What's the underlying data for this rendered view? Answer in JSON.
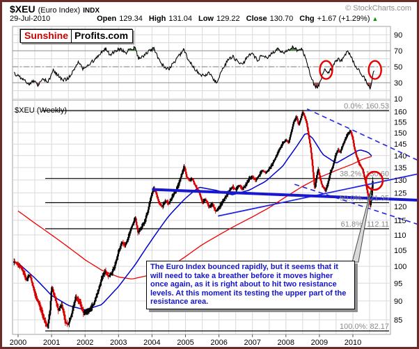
{
  "header": {
    "ticker": "$XEU",
    "name": "(Euro Index)",
    "exchange": "INDX",
    "date": "29-Jul-2010",
    "open_label": "Open",
    "open_value": "129.34",
    "high_label": "High",
    "high_value": "131.04",
    "low_label": "Low",
    "low_value": "129.22",
    "close_label": "Close",
    "close_value": "130.70",
    "chg_label": "Chg",
    "chg_value": "+1.67 (+1.29%)",
    "chg_arrow": "▲",
    "copyright": "© StockCharts.com"
  },
  "logo": {
    "part1": "Sunshine",
    "part2": "Profits.com"
  },
  "annotation": {
    "text": "The Euro Index bounced rapidly, but it seems that it will need  to take a breather before it moves higher once again, as it is right about to hit two resistance levels. At this moment its testing the upper part of the resistance area."
  },
  "colors": {
    "candle_up": "#000000",
    "candle_down": "#d40000",
    "ma50": "#0000cc",
    "ma200": "#ee0000",
    "trendline_blue": "#2323e6",
    "thick_blue": "#1818cf",
    "grid": "#d9d9d9",
    "panel_border": "#a0a0a0",
    "fib_line": "#000000",
    "fib_label": "#8a8a8a",
    "rsi_line": "#000000",
    "rsi_band": "#8f8f8f",
    "overbought_fill": "#54804f",
    "oversold_fill": "#a05555",
    "ellipse_red": "#e60000",
    "arrow_fill": "#d9d9d9",
    "arrow_stroke": "#4a4a4a"
  },
  "chart_data": [
    {
      "type": "line",
      "name": "momentum-oscillator-panel",
      "y_ticks": [
        90,
        70,
        50,
        30,
        10
      ],
      "ylim": [
        5,
        97
      ],
      "overbought_level": 70,
      "oversold_level": 30,
      "midline": 50,
      "grid": true,
      "keypoints": [
        [
          1999.88,
          42
        ],
        [
          2000.1,
          36
        ],
        [
          2000.3,
          28
        ],
        [
          2000.45,
          33
        ],
        [
          2000.6,
          27
        ],
        [
          2000.75,
          34
        ],
        [
          2000.9,
          31
        ],
        [
          2001.05,
          46
        ],
        [
          2001.2,
          39
        ],
        [
          2001.35,
          33
        ],
        [
          2001.5,
          36
        ],
        [
          2001.65,
          45
        ],
        [
          2001.8,
          55
        ],
        [
          2001.95,
          47
        ],
        [
          2002.1,
          51
        ],
        [
          2002.3,
          60
        ],
        [
          2002.5,
          68
        ],
        [
          2002.62,
          72
        ],
        [
          2002.75,
          65
        ],
        [
          2002.9,
          69
        ],
        [
          2003.05,
          73
        ],
        [
          2003.2,
          67
        ],
        [
          2003.35,
          72
        ],
        [
          2003.5,
          74
        ],
        [
          2003.6,
          60
        ],
        [
          2003.75,
          63
        ],
        [
          2003.9,
          69
        ],
        [
          2004.05,
          73
        ],
        [
          2004.2,
          60
        ],
        [
          2004.35,
          50
        ],
        [
          2004.5,
          47
        ],
        [
          2004.65,
          55
        ],
        [
          2004.8,
          63
        ],
        [
          2004.95,
          71
        ],
        [
          2005.1,
          58
        ],
        [
          2005.25,
          49
        ],
        [
          2005.4,
          42
        ],
        [
          2005.55,
          38
        ],
        [
          2005.7,
          43
        ],
        [
          2005.85,
          33
        ],
        [
          2005.95,
          31
        ],
        [
          2006.1,
          46
        ],
        [
          2006.25,
          57
        ],
        [
          2006.4,
          63
        ],
        [
          2006.55,
          57
        ],
        [
          2006.7,
          53
        ],
        [
          2006.85,
          62
        ],
        [
          2007.0,
          67
        ],
        [
          2007.15,
          58
        ],
        [
          2007.3,
          65
        ],
        [
          2007.45,
          62
        ],
        [
          2007.6,
          67
        ],
        [
          2007.75,
          73
        ],
        [
          2007.9,
          67
        ],
        [
          2008.05,
          71
        ],
        [
          2008.2,
          75
        ],
        [
          2008.35,
          70
        ],
        [
          2008.45,
          74
        ],
        [
          2008.55,
          65
        ],
        [
          2008.65,
          52
        ],
        [
          2008.75,
          38
        ],
        [
          2008.85,
          26
        ],
        [
          2008.95,
          24
        ],
        [
          2009.05,
          35
        ],
        [
          2009.15,
          48
        ],
        [
          2009.25,
          41
        ],
        [
          2009.35,
          47
        ],
        [
          2009.45,
          54
        ],
        [
          2009.55,
          60
        ],
        [
          2009.65,
          57
        ],
        [
          2009.75,
          64
        ],
        [
          2009.85,
          69
        ],
        [
          2009.95,
          62
        ],
        [
          2010.05,
          53
        ],
        [
          2010.15,
          47
        ],
        [
          2010.25,
          41
        ],
        [
          2010.35,
          36
        ],
        [
          2010.45,
          27
        ],
        [
          2010.52,
          22
        ],
        [
          2010.58,
          35
        ],
        [
          2010.64,
          47
        ]
      ],
      "highlight_ellipses": [
        {
          "x": 2009.2,
          "value": 46
        },
        {
          "x": 2010.66,
          "value": 46
        }
      ]
    },
    {
      "type": "candlestick",
      "name": "price-panel",
      "title": "$XEU (Weekly)",
      "scale": "log",
      "x_ticks": [
        2000,
        2001,
        2002,
        2003,
        2004,
        2005,
        2006,
        2007,
        2008,
        2009,
        2010
      ],
      "y_ticks": [
        160,
        155,
        150,
        145,
        140,
        135,
        130,
        125,
        120,
        115,
        110,
        105,
        100,
        95,
        90,
        85
      ],
      "ylim": [
        81.5,
        163
      ],
      "last_bar": {
        "date": "29-Jul-2010",
        "open": 129.34,
        "high": 131.04,
        "low": 129.22,
        "close": 130.7,
        "change": "+1.67",
        "change_pct": "+1.29%"
      },
      "fibonacci": [
        {
          "label": "0.0%",
          "value": 160.53
        },
        {
          "label": "38.2%",
          "value": 130.6
        },
        {
          "label": "50.0%",
          "value": 121.35
        },
        {
          "label": "61.8%",
          "value": 112.11
        },
        {
          "label": "100.0%",
          "value": 82.17
        }
      ],
      "close_keypoints": [
        [
          1999.88,
          101.5
        ],
        [
          2000.1,
          99.5
        ],
        [
          2000.25,
          96
        ],
        [
          2000.35,
          97.5
        ],
        [
          2000.5,
          92
        ],
        [
          2000.65,
          88.5
        ],
        [
          2000.8,
          84.5
        ],
        [
          2000.88,
          83.2
        ],
        [
          2000.95,
          87
        ],
        [
          2001.0,
          93.8
        ],
        [
          2001.1,
          91
        ],
        [
          2001.2,
          87.5
        ],
        [
          2001.3,
          89
        ],
        [
          2001.42,
          84.2
        ],
        [
          2001.5,
          83.8
        ],
        [
          2001.6,
          86.5
        ],
        [
          2001.72,
          91
        ],
        [
          2001.85,
          89.5
        ],
        [
          2001.95,
          86.8
        ],
        [
          2002.1,
          87.2
        ],
        [
          2002.25,
          89
        ],
        [
          2002.4,
          93
        ],
        [
          2002.5,
          96.5
        ],
        [
          2002.6,
          98.5
        ],
        [
          2002.7,
          97
        ],
        [
          2002.8,
          98
        ],
        [
          2002.9,
          100.5
        ],
        [
          2003.0,
          104.5
        ],
        [
          2003.1,
          107.5
        ],
        [
          2003.2,
          106.5
        ],
        [
          2003.3,
          109.5
        ],
        [
          2003.4,
          113
        ],
        [
          2003.5,
          115.8
        ],
        [
          2003.58,
          110.8
        ],
        [
          2003.68,
          112.5
        ],
        [
          2003.78,
          114.5
        ],
        [
          2003.88,
          118.5
        ],
        [
          2003.98,
          124
        ],
        [
          2004.05,
          126.8
        ],
        [
          2004.12,
          125
        ],
        [
          2004.2,
          121.5
        ],
        [
          2004.3,
          119.8
        ],
        [
          2004.4,
          122
        ],
        [
          2004.5,
          121
        ],
        [
          2004.6,
          123.5
        ],
        [
          2004.7,
          125.5
        ],
        [
          2004.8,
          128.5
        ],
        [
          2004.88,
          132
        ],
        [
          2004.96,
          135.3
        ],
        [
          2005.04,
          131
        ],
        [
          2005.12,
          129.8
        ],
        [
          2005.2,
          130.5
        ],
        [
          2005.3,
          127.5
        ],
        [
          2005.4,
          125.5
        ],
        [
          2005.5,
          121.5
        ],
        [
          2005.6,
          122.5
        ],
        [
          2005.7,
          119.8
        ],
        [
          2005.8,
          120.8
        ],
        [
          2005.9,
          118.2
        ],
        [
          2006.0,
          119.5
        ],
        [
          2006.1,
          121.5
        ],
        [
          2006.2,
          123.5
        ],
        [
          2006.3,
          125.5
        ],
        [
          2006.4,
          127.3
        ],
        [
          2006.5,
          126.2
        ],
        [
          2006.6,
          127.8
        ],
        [
          2006.7,
          126.5
        ],
        [
          2006.8,
          128
        ],
        [
          2006.9,
          130.5
        ],
        [
          2007.0,
          131.2
        ],
        [
          2007.1,
          129.8
        ],
        [
          2007.2,
          132
        ],
        [
          2007.3,
          133.8
        ],
        [
          2007.4,
          132.8
        ],
        [
          2007.5,
          134.5
        ],
        [
          2007.6,
          136.5
        ],
        [
          2007.7,
          139.5
        ],
        [
          2007.8,
          142.5
        ],
        [
          2007.9,
          145.2
        ],
        [
          2008.0,
          146.8
        ],
        [
          2008.08,
          145.5
        ],
        [
          2008.16,
          150.5
        ],
        [
          2008.24,
          155.5
        ],
        [
          2008.32,
          157.5
        ],
        [
          2008.38,
          153.5
        ],
        [
          2008.44,
          156.5
        ],
        [
          2008.5,
          159.8
        ],
        [
          2008.56,
          157.5
        ],
        [
          2008.62,
          154.5
        ],
        [
          2008.68,
          148.5
        ],
        [
          2008.74,
          143
        ],
        [
          2008.8,
          134.5
        ],
        [
          2008.86,
          126.5
        ],
        [
          2008.9,
          130
        ],
        [
          2008.96,
          134.5
        ],
        [
          2009.0,
          132
        ],
        [
          2009.06,
          128.5
        ],
        [
          2009.12,
          127
        ],
        [
          2009.18,
          125.8
        ],
        [
          2009.25,
          128.5
        ],
        [
          2009.32,
          132.5
        ],
        [
          2009.4,
          135.5
        ],
        [
          2009.48,
          139.8
        ],
        [
          2009.55,
          142.5
        ],
        [
          2009.62,
          141.5
        ],
        [
          2009.7,
          144.5
        ],
        [
          2009.78,
          147.5
        ],
        [
          2009.85,
          149.5
        ],
        [
          2009.92,
          150.8
        ],
        [
          2009.98,
          148.5
        ],
        [
          2010.04,
          143.5
        ],
        [
          2010.1,
          140
        ],
        [
          2010.16,
          137.5
        ],
        [
          2010.22,
          135.8
        ],
        [
          2010.28,
          134.5
        ],
        [
          2010.34,
          131.5
        ],
        [
          2010.4,
          127.5
        ],
        [
          2010.46,
          123.5
        ],
        [
          2010.52,
          120.2
        ],
        [
          2010.56,
          124.5
        ],
        [
          2010.6,
          130.7
        ]
      ],
      "ma50_keypoints": [
        [
          2000.0,
          101
        ],
        [
          2000.5,
          96.5
        ],
        [
          2001.0,
          91.5
        ],
        [
          2001.5,
          88.8
        ],
        [
          2002.0,
          87.6
        ],
        [
          2002.5,
          89
        ],
        [
          2003.0,
          94
        ],
        [
          2003.5,
          100.5
        ],
        [
          2004.0,
          108.5
        ],
        [
          2004.5,
          116.5
        ],
        [
          2005.0,
          123
        ],
        [
          2005.4,
          127.2
        ],
        [
          2005.9,
          126
        ],
        [
          2006.4,
          124.3
        ],
        [
          2006.9,
          126
        ],
        [
          2007.4,
          129.5
        ],
        [
          2007.9,
          135.5
        ],
        [
          2008.3,
          143.5
        ],
        [
          2008.6,
          150.2
        ],
        [
          2008.8,
          147.5
        ],
        [
          2009.1,
          140.5
        ],
        [
          2009.5,
          136.8
        ],
        [
          2009.9,
          140
        ],
        [
          2010.2,
          142.5
        ],
        [
          2010.45,
          141.5
        ],
        [
          2010.6,
          139.3
        ]
      ],
      "ma200_keypoints": [
        [
          2000.0,
          118.3
        ],
        [
          2000.5,
          114
        ],
        [
          2001.0,
          110
        ],
        [
          2001.5,
          106
        ],
        [
          2002.0,
          102
        ],
        [
          2002.5,
          98.8
        ],
        [
          2003.0,
          96.8
        ],
        [
          2003.4,
          96.2
        ],
        [
          2004.0,
          97.5
        ],
        [
          2004.5,
          99.5
        ],
        [
          2005.0,
          103
        ],
        [
          2005.5,
          106.8
        ],
        [
          2006.0,
          110
        ],
        [
          2006.5,
          113.2
        ],
        [
          2007.0,
          116.2
        ],
        [
          2007.5,
          119.5
        ],
        [
          2008.0,
          123.5
        ],
        [
          2008.5,
          127.5
        ],
        [
          2009.0,
          131
        ],
        [
          2009.5,
          133.8
        ],
        [
          2010.0,
          136.5
        ],
        [
          2010.3,
          138.5
        ],
        [
          2010.6,
          139.8
        ]
      ],
      "trendlines": [
        {
          "name": "declining-resistance-dashed",
          "style": "dashed",
          "from": [
            2008.63,
            161.3
          ],
          "to": [
            2012.05,
            137.3
          ]
        },
        {
          "name": "declining-support-dashed",
          "style": "dashed",
          "from": [
            2008.26,
            128.3
          ],
          "to": [
            2012.05,
            113.2
          ]
        },
        {
          "name": "rising-resistance-line",
          "style": "solid-thin",
          "from": [
            2005.97,
            116.5
          ],
          "to": [
            2012.05,
            132.7
          ]
        },
        {
          "name": "long-term-resistance-line",
          "style": "solid-thick",
          "from": [
            2004.0,
            126.3
          ],
          "to": [
            2012.05,
            122.2
          ]
        }
      ],
      "highlight_ellipse": {
        "x": 2010.6,
        "value": 129.7
      }
    }
  ]
}
